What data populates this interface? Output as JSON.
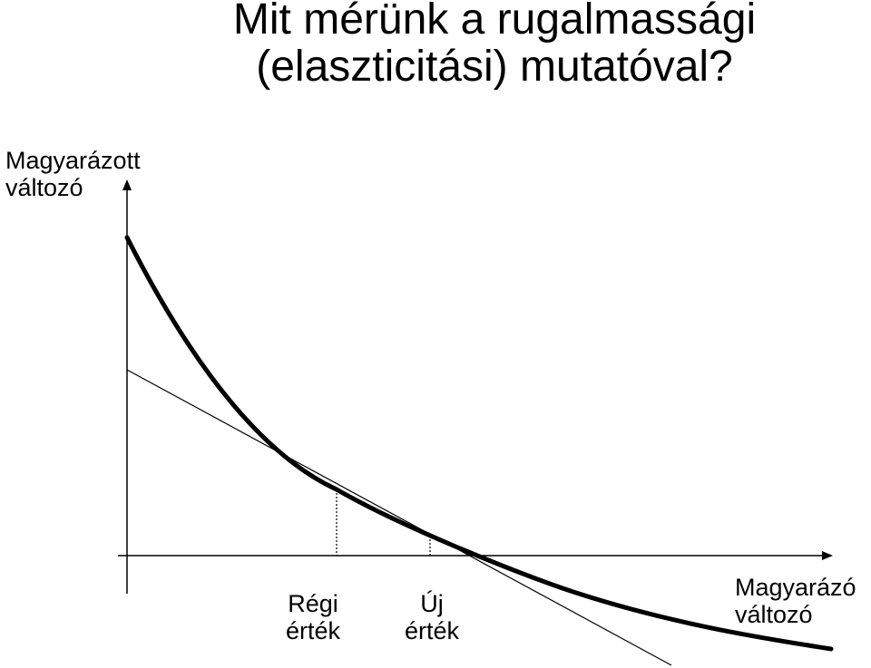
{
  "title": {
    "line1": "Mit mérünk a rugalmassági",
    "line2": "(elaszticitási) mutatóval?"
  },
  "y_axis_label": {
    "line1": "Magyarázott",
    "line2": "változó"
  },
  "x_axis_label": {
    "line1": "Magyarázó",
    "line2": "változó"
  },
  "old_value_label": {
    "line1": "Régi",
    "line2": "érték"
  },
  "new_value_label": {
    "line1": "Új",
    "line2": "érték"
  },
  "colors": {
    "ink": "#000000",
    "background": "#ffffff"
  }
}
